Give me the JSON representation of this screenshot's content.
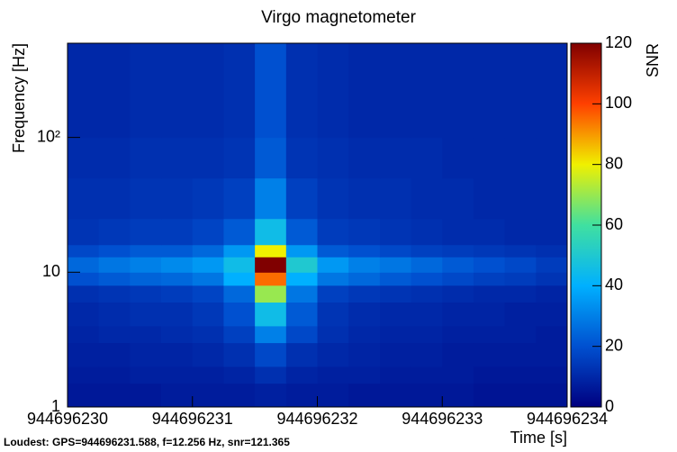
{
  "chart_data": {
    "type": "heatmap",
    "title": "Virgo magnetometer",
    "x_label": "Time [s]",
    "y_label": "Frequency [Hz]",
    "colorbar_label": "SNR",
    "annotation": "Loudest: GPS=944696231.588, f=12.256 Hz, snr=121.365",
    "log_y": true,
    "xlim": [
      944696230,
      944696234
    ],
    "xticks": [
      944696230,
      944696231,
      944696232,
      944696233,
      944696234
    ],
    "ylim": [
      1,
      500
    ],
    "yticks": [
      1,
      10,
      {
        "value": 100,
        "label": "10²"
      }
    ],
    "zlim": [
      0,
      120
    ],
    "zticks": [
      0,
      20,
      40,
      60,
      80,
      100,
      120
    ],
    "colormap": [
      "#000080",
      "#0050d0",
      "#00b0ff",
      "#40e0a0",
      "#f0f000",
      "#ff4000",
      "#800000"
    ],
    "x_bins": [
      944696230,
      944696230.25,
      944696230.5,
      944696230.75,
      944696231,
      944696231.25,
      944696231.5,
      944696231.75,
      944696232,
      944696232.25,
      944696232.5,
      944696232.75,
      944696233,
      944696233.25,
      944696233.5,
      944696233.75,
      944696234
    ],
    "y_bins": [
      1,
      1.5,
      2,
      3,
      4,
      6,
      8,
      10,
      13,
      16,
      25,
      50,
      100,
      500
    ],
    "z": [
      [
        6,
        6,
        6,
        7,
        7,
        7,
        8,
        7,
        7,
        6,
        6,
        6,
        6,
        5,
        5,
        5
      ],
      [
        7,
        7,
        8,
        8,
        8,
        9,
        12,
        9,
        8,
        8,
        7,
        7,
        7,
        6,
        6,
        6
      ],
      [
        8,
        8,
        9,
        9,
        10,
        12,
        18,
        12,
        10,
        9,
        8,
        8,
        7,
        7,
        7,
        7
      ],
      [
        9,
        10,
        10,
        11,
        12,
        16,
        30,
        18,
        12,
        10,
        9,
        9,
        8,
        8,
        8,
        7
      ],
      [
        10,
        11,
        12,
        12,
        14,
        20,
        45,
        22,
        13,
        11,
        10,
        10,
        9,
        9,
        8,
        8
      ],
      [
        12,
        13,
        14,
        15,
        17,
        25,
        70,
        28,
        16,
        14,
        13,
        12,
        11,
        10,
        10,
        9
      ],
      [
        20,
        22,
        24,
        25,
        28,
        40,
        95,
        40,
        28,
        25,
        22,
        20,
        18,
        16,
        15,
        13
      ],
      [
        25,
        28,
        30,
        32,
        35,
        45,
        121,
        50,
        35,
        30,
        28,
        25,
        22,
        20,
        18,
        15
      ],
      [
        18,
        20,
        22,
        22,
        25,
        35,
        80,
        35,
        22,
        20,
        18,
        16,
        15,
        14,
        13,
        12
      ],
      [
        13,
        14,
        15,
        15,
        17,
        22,
        45,
        22,
        15,
        14,
        13,
        12,
        11,
        11,
        10,
        10
      ],
      [
        12,
        12,
        13,
        13,
        14,
        16,
        30,
        16,
        13,
        12,
        12,
        11,
        11,
        10,
        10,
        10
      ],
      [
        11,
        11,
        12,
        12,
        12,
        13,
        22,
        13,
        12,
        11,
        11,
        11,
        10,
        10,
        10,
        10
      ],
      [
        10,
        10,
        11,
        11,
        11,
        12,
        20,
        12,
        11,
        10,
        10,
        10,
        10,
        10,
        10,
        10
      ]
    ]
  }
}
